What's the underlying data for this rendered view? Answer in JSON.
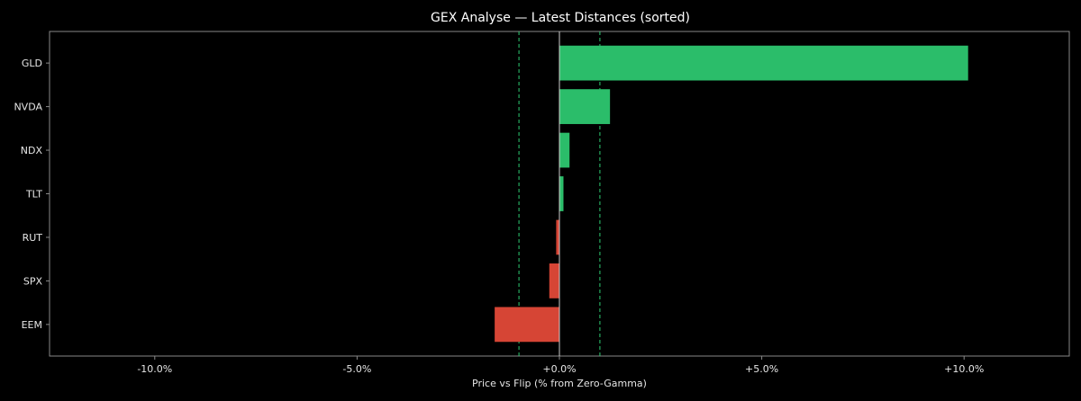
{
  "chart_data": {
    "type": "bar",
    "orientation": "horizontal",
    "title": "GEX Analyse — Latest Distances (sorted)",
    "xlabel": "Price vs Flip (% from Zero-Gamma)",
    "ylabel": "",
    "categories": [
      "GLD",
      "NVDA",
      "NDX",
      "TLT",
      "RUT",
      "SPX",
      "EEM"
    ],
    "values": [
      10.1,
      1.25,
      0.25,
      0.1,
      -0.08,
      -0.25,
      -1.6
    ],
    "xlim": [
      -12.6,
      12.6
    ],
    "xticks": [
      -10,
      -5,
      0,
      5,
      10
    ],
    "xtick_labels": [
      "-10.0%",
      "-5.0%",
      "+0.0%",
      "+5.0%",
      "+10.0%"
    ],
    "reference_lines": [
      {
        "x": -1.0,
        "style": "dashed",
        "color": "#2ecc71"
      },
      {
        "x": 1.0,
        "style": "dashed",
        "color": "#2ecc71"
      },
      {
        "x": 0,
        "style": "solid",
        "color": "#cccccc"
      }
    ],
    "grid": false,
    "colors": {
      "positive": "#2bbd6a",
      "negative": "#d64535",
      "background": "#000000",
      "axes": "#888888",
      "text": "#e6e6e6"
    }
  }
}
